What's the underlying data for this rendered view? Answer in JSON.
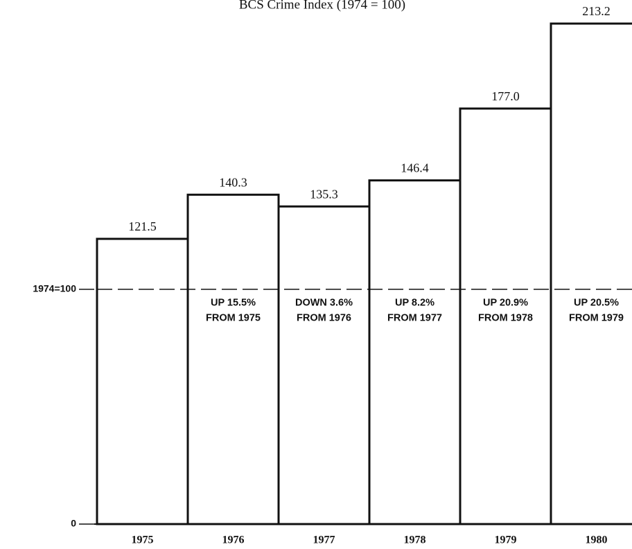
{
  "chart_data": {
    "type": "bar",
    "title": "BCS Crime Index (1974 = 100)",
    "categories": [
      "1975",
      "1976",
      "1977",
      "1978",
      "1979",
      "1980"
    ],
    "values": [
      121.5,
      140.3,
      135.3,
      146.4,
      177.0,
      213.2
    ],
    "value_labels": [
      "121.5",
      "140.3",
      "135.3",
      "146.4",
      "177.0",
      "213.2"
    ],
    "annotations": [
      null,
      [
        "UP 15.5%",
        "FROM 1975"
      ],
      [
        "DOWN 3.6%",
        "FROM 1976"
      ],
      [
        "UP 8.2%",
        "FROM 1977"
      ],
      [
        "UP 20.9%",
        "FROM 1978"
      ],
      [
        "UP 20.5%",
        "FROM 1979"
      ]
    ],
    "color": "#ffffff",
    "ylim": [
      0,
      220
    ],
    "yticks": [
      0,
      {
        "value": 100,
        "label": "1974=100"
      }
    ]
  }
}
